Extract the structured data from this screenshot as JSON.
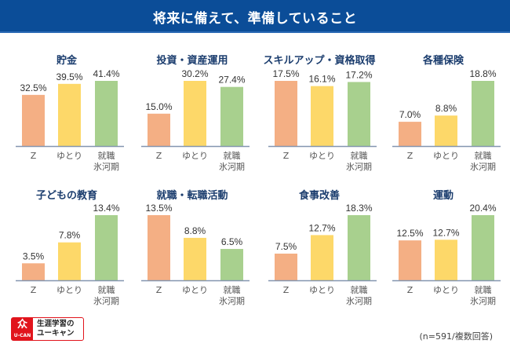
{
  "header": {
    "title": "将来に備えて、準備していること"
  },
  "colors": {
    "header_bg": "#0b4d98",
    "title_text": "#1b3d6e",
    "z": "#f4af84",
    "yutori": "#fdd869",
    "hyogaki": "#a8d08e",
    "axis": "#8496b0"
  },
  "chart_data": {
    "type": "bar",
    "title": "将来に備えて、準備していること",
    "categories": [
      "Z",
      "ゆとり",
      "就職氷河期"
    ],
    "category_labels": [
      [
        "Z"
      ],
      [
        "ゆとり"
      ],
      [
        "就職",
        "氷河期"
      ]
    ],
    "unit": "%",
    "panels": [
      {
        "title": "貯金",
        "values": [
          32.5,
          39.5,
          41.4
        ]
      },
      {
        "title": "投資・資産運用",
        "values": [
          15.0,
          30.2,
          27.4
        ]
      },
      {
        "title": "スキルアップ・資格取得",
        "values": [
          17.5,
          16.1,
          17.2
        ]
      },
      {
        "title": "各種保険",
        "values": [
          7.0,
          8.8,
          18.8
        ]
      },
      {
        "title": "子どもの教育",
        "values": [
          3.5,
          7.8,
          13.4
        ]
      },
      {
        "title": "就職・転職活動",
        "values": [
          13.5,
          8.8,
          6.5
        ]
      },
      {
        "title": "食事改善",
        "values": [
          7.5,
          12.7,
          18.3
        ]
      },
      {
        "title": "運動",
        "values": [
          12.5,
          12.7,
          20.4
        ]
      }
    ],
    "grid": false,
    "legend": "none"
  },
  "footer": {
    "logo_glyph": "众",
    "logo_brand": "U-CAN",
    "logo_line1": "生涯学習の",
    "logo_line2": "ユーキャン",
    "note": "(n=591/複数回答)"
  }
}
